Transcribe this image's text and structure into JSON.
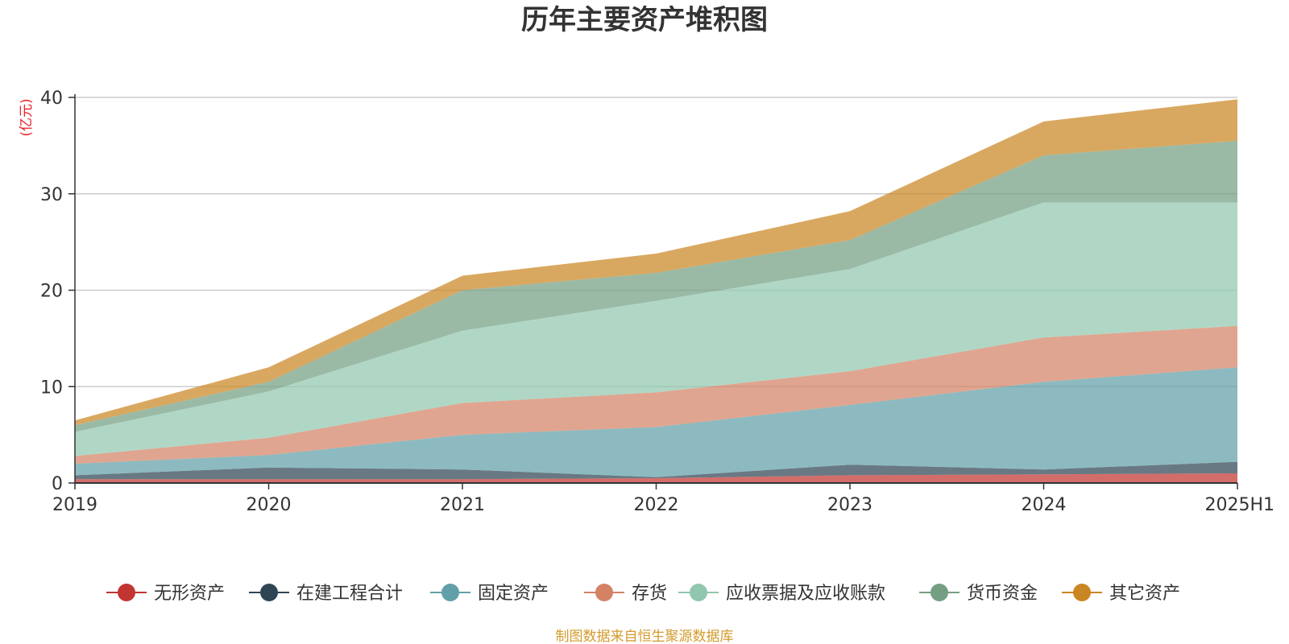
{
  "chart_data": {
    "type": "area",
    "stacked": true,
    "title": "历年主要资产堆积图",
    "ylabel": "(亿元)",
    "xlabel": "",
    "x": [
      "2019",
      "2020",
      "2021",
      "2022",
      "2023",
      "2024",
      "2025H1"
    ],
    "ylim": [
      0,
      40
    ],
    "yticks": [
      "0",
      "10",
      "20",
      "30",
      "40"
    ],
    "grid": true,
    "legend_position": "bottom",
    "series": [
      {
        "name": "无形资产",
        "color": "#c23531",
        "values": [
          0.4,
          0.4,
          0.4,
          0.5,
          0.8,
          0.9,
          1.0
        ]
      },
      {
        "name": "在建工程合计",
        "color": "#2f4554",
        "values": [
          0.4,
          1.2,
          1.0,
          0.1,
          1.1,
          0.5,
          1.2
        ]
      },
      {
        "name": "固定资产",
        "color": "#61a0a8",
        "values": [
          1.2,
          1.3,
          3.6,
          5.2,
          6.2,
          9.1,
          9.8
        ]
      },
      {
        "name": "存货",
        "color": "#d48265",
        "values": [
          0.8,
          1.8,
          3.3,
          3.6,
          3.5,
          4.6,
          4.3
        ]
      },
      {
        "name": "应收票据及应收账款",
        "color": "#91c7ae",
        "values": [
          2.5,
          4.8,
          7.5,
          9.5,
          10.6,
          14.0,
          12.8
        ]
      },
      {
        "name": "货币资金",
        "color": "#749f83",
        "values": [
          0.7,
          1.0,
          4.2,
          2.9,
          3.0,
          4.9,
          6.4
        ]
      },
      {
        "name": "其它资产",
        "color": "#ca8622",
        "values": [
          0.5,
          1.5,
          1.5,
          2.0,
          3.0,
          3.5,
          4.3
        ]
      }
    ],
    "source": "制图数据来自恒生聚源数据库"
  }
}
